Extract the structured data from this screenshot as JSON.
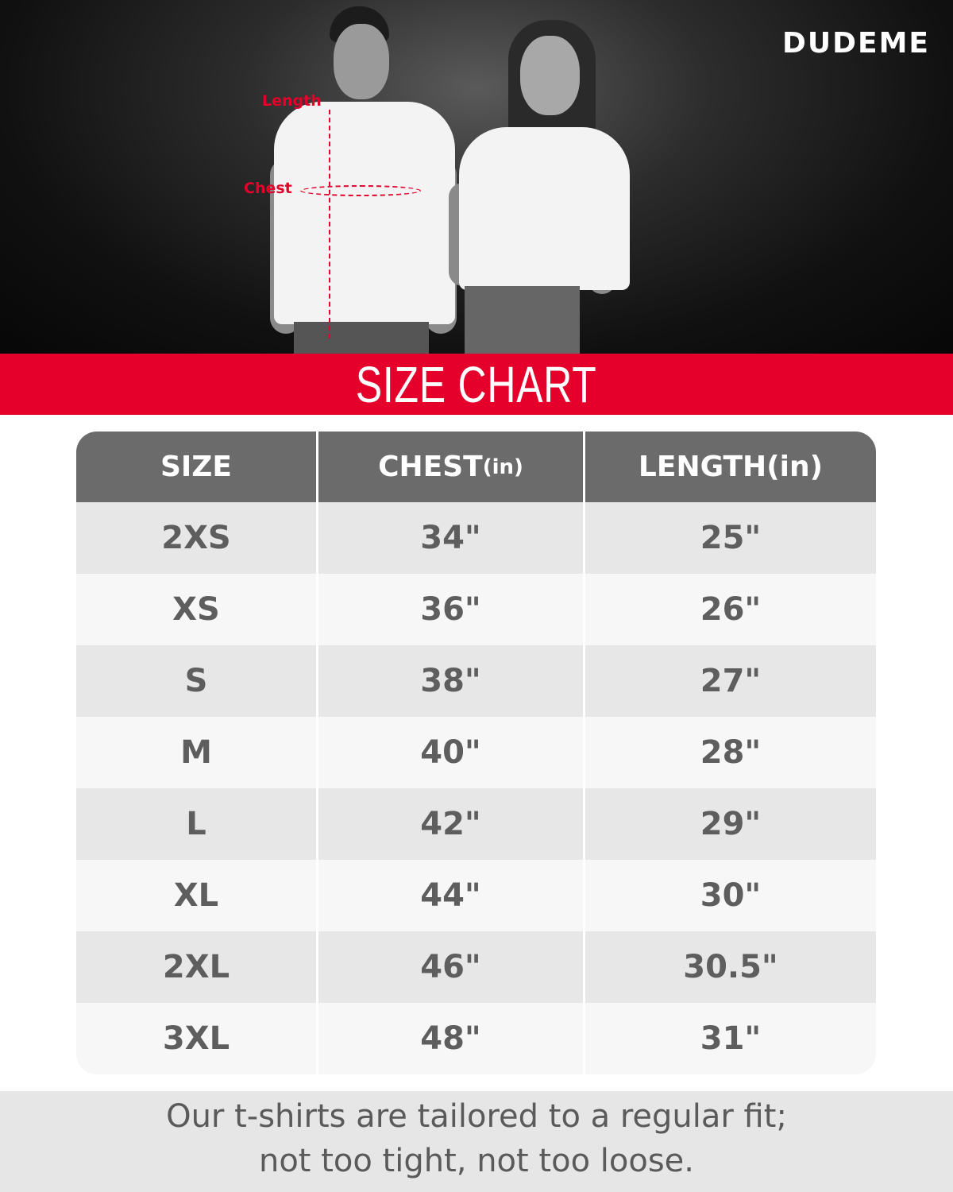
{
  "brand": {
    "logo_text": "DUDEME"
  },
  "photo": {
    "labels": {
      "length": "Length",
      "chest": "Chest"
    }
  },
  "title": "SIZE CHART",
  "table": {
    "headers": [
      {
        "main": "SIZE",
        "unit": ""
      },
      {
        "main": "CHEST",
        "unit": "(in)"
      },
      {
        "main": "LENGTH",
        "unit": "(in)"
      }
    ],
    "rows": [
      {
        "size": "2XS",
        "chest": "34\"",
        "length": "25\""
      },
      {
        "size": "XS",
        "chest": "36\"",
        "length": "26\""
      },
      {
        "size": "S",
        "chest": "38\"",
        "length": "27\""
      },
      {
        "size": "M",
        "chest": "40\"",
        "length": "28\""
      },
      {
        "size": "L",
        "chest": "42\"",
        "length": "29\""
      },
      {
        "size": "XL",
        "chest": "44\"",
        "length": "30\""
      },
      {
        "size": "2XL",
        "chest": "46\"",
        "length": "30.5\""
      },
      {
        "size": "3XL",
        "chest": "48\"",
        "length": "31\""
      }
    ]
  },
  "footer": {
    "line1": "Our t-shirts are tailored to a regular fit;",
    "line2": "not too tight, not too loose."
  },
  "colors": {
    "accent": "#e4002b",
    "header": "#6b6b6b",
    "row_odd": "#e7e7e7",
    "row_even": "#f7f7f7",
    "footer_bg": "#e6e6e6"
  }
}
